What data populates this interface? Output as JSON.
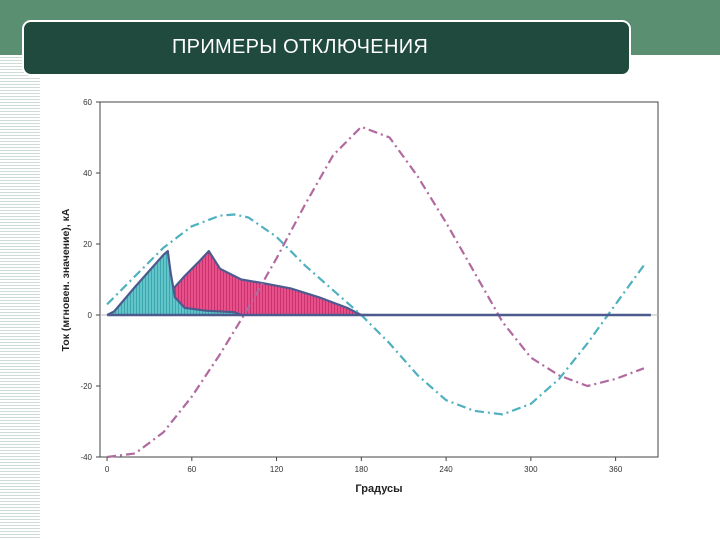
{
  "slide": {
    "title": "ПРИМЕРЫ ОТКЛЮЧЕНИЯ",
    "accent_color": "#1f4a3d",
    "band_color": "#5a8f72"
  },
  "chart_data": {
    "type": "line",
    "xlabel": "Градусы",
    "ylabel": "Ток (мгновен. значение), кА",
    "xlim": [
      -5,
      390
    ],
    "ylim": [
      -40,
      60
    ],
    "x_ticks": [
      0,
      60,
      120,
      180,
      240,
      300,
      360
    ],
    "y_ticks": [
      60,
      40,
      20,
      0,
      -20,
      -40
    ],
    "grid": false,
    "series": [
      {
        "style": "dash-dot",
        "color": "#b06aa0",
        "x": [
          0,
          20,
          40,
          60,
          80,
          100,
          120,
          140,
          160,
          180,
          200,
          220,
          240,
          260,
          280,
          300,
          320,
          340,
          360,
          380
        ],
        "y": [
          -40,
          -39,
          -33,
          -23,
          -11,
          2,
          16,
          31,
          45,
          53,
          50,
          39,
          26,
          12,
          -2,
          -12,
          -17,
          -20,
          -18,
          -15
        ]
      },
      {
        "style": "dash-dot",
        "color": "#4fb0bf",
        "x": [
          0,
          20,
          40,
          60,
          80,
          90,
          100,
          120,
          140,
          160,
          180,
          200,
          220,
          240,
          260,
          280,
          300,
          320,
          340,
          360,
          380
        ],
        "y": [
          3,
          11,
          19,
          25,
          28,
          28.3,
          27.5,
          22,
          14,
          7,
          0,
          -8,
          -17,
          -24,
          -27,
          -28,
          -25,
          -18,
          -8,
          3,
          14
        ]
      },
      {
        "style": "filled",
        "color": "#4fb8bd",
        "x": [
          0,
          5,
          20,
          40,
          43,
          45,
          48,
          55,
          70,
          90,
          95
        ],
        "y": [
          0,
          1,
          8,
          17,
          18,
          12,
          5,
          2,
          1.2,
          0.8,
          0
        ]
      },
      {
        "style": "filled",
        "color": "#e0407e",
        "x": [
          40,
          46,
          55,
          65,
          72,
          80,
          95,
          110,
          130,
          150,
          170,
          180,
          185
        ],
        "y": [
          0,
          7,
          11,
          15,
          18,
          13,
          10,
          9,
          7.5,
          5,
          2,
          0,
          0
        ]
      },
      {
        "style": "solid",
        "color": "#4d5a8e",
        "x": [
          0,
          385
        ],
        "y": [
          0,
          0
        ]
      }
    ]
  }
}
